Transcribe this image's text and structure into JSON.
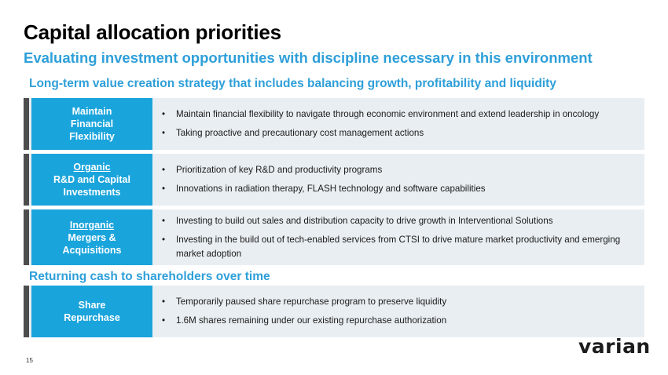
{
  "title": "Capital allocation priorities",
  "subtitle": "Evaluating investment opportunities with discipline necessary in this environment",
  "section1_heading": "Long-term value creation strategy that includes balancing growth, profitability and liquidity",
  "section2_heading": "Returning cash to shareholders over time",
  "rows": [
    {
      "tag_underlined": "",
      "tag_lines": [
        "Maintain",
        "Financial",
        "Flexibility"
      ],
      "bullets": [
        "Maintain financial flexibility to navigate through economic environment and extend leadership in oncology",
        "Taking proactive and precautionary cost management actions"
      ]
    },
    {
      "tag_underlined": "Organic",
      "tag_lines": [
        "R&D and Capital",
        "Investments"
      ],
      "bullets": [
        "Prioritization of key R&D and productivity programs",
        "Innovations in radiation therapy, FLASH technology and software capabilities"
      ]
    },
    {
      "tag_underlined": "Inorganic",
      "tag_lines": [
        "Mergers &",
        "Acquisitions"
      ],
      "bullets": [
        "Investing to build out sales and distribution capacity to drive growth in Interventional Solutions",
        "Investing in the build out of tech-enabled services from CTSI to drive mature market productivity and emerging market adoption"
      ]
    },
    {
      "tag_underlined": "",
      "tag_lines": [
        "Share",
        "Repurchase"
      ],
      "bullets": [
        "Temporarily paused share repurchase program to preserve liquidity",
        "1.6M shares remaining under our existing repurchase authorization"
      ]
    }
  ],
  "page_number": "15",
  "logo_text": "varian",
  "colors": {
    "accent": "#2e9fd9",
    "tag_bg": "#1aa4dc",
    "row_bg": "#e9eef2",
    "bar": "#4d4d4d"
  }
}
